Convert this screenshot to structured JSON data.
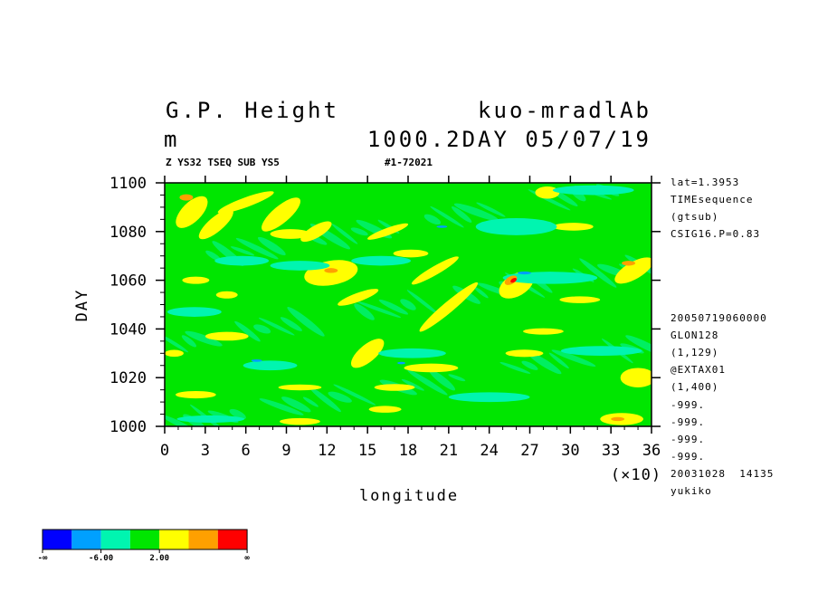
{
  "header": {
    "title_left": "G.P. Height",
    "units": "m",
    "title_right": "kuo-mradlAb",
    "level_date": "1000.2DAY 05/07/19",
    "subtitle_left": "Z YS32 TSEQ SUB YS5",
    "subtitle_right": "#1-72021"
  },
  "info_upper": [
    "lat=1.3953",
    "TIMEsequence",
    "(gtsub)",
    "CSIG16.P=0.83"
  ],
  "info_lower": [
    "20050719060000",
    "GLON128",
    "(1,129)",
    "@EXTAX01",
    "(1,400)",
    "-999.",
    "-999.",
    "-999.",
    "-999.",
    "20031028  14135",
    "yukiko"
  ],
  "chart_data": {
    "type": "heatmap",
    "xlabel": "longitude",
    "xlabel_multiplier": "(×10)",
    "ylabel": "DAY",
    "xlim": [
      0,
      36
    ],
    "ylim": [
      1000,
      1100
    ],
    "xticks": [
      "0",
      "3",
      "6",
      "9",
      "12",
      "15",
      "18",
      "21",
      "24",
      "27",
      "30",
      "33",
      "36"
    ],
    "yticks": [
      "1000",
      "1020",
      "1040",
      "1060",
      "1080",
      "1100"
    ],
    "background_level_color": "#00e600",
    "color_levels": [
      {
        "color": "#0000ff"
      },
      {
        "color": "#00a0ff"
      },
      {
        "color": "#00f5b0"
      },
      {
        "color": "#00e600"
      },
      {
        "color": "#ffff00"
      },
      {
        "color": "#ffa000"
      },
      {
        "color": "#ff0000"
      }
    ],
    "legend_labels": [
      "-∞",
      "-6.00",
      "2.00",
      "∞"
    ],
    "features": [
      {
        "level": 4,
        "x": 2.0,
        "y": 1088,
        "rx": 1.5,
        "ry": 4,
        "angle": -45
      },
      {
        "level": 5,
        "x": 1.6,
        "y": 1094,
        "rx": 0.5,
        "ry": 1.3,
        "angle": 0
      },
      {
        "level": 4,
        "x": 3.8,
        "y": 1083,
        "rx": 1.6,
        "ry": 3,
        "angle": -40
      },
      {
        "level": 4,
        "x": 6.0,
        "y": 1092,
        "rx": 2.2,
        "ry": 2,
        "angle": -20
      },
      {
        "level": 4,
        "x": 8.6,
        "y": 1087,
        "rx": 1.8,
        "ry": 3.5,
        "angle": -40
      },
      {
        "level": 4,
        "x": 11.2,
        "y": 1080,
        "rx": 1.3,
        "ry": 2.5,
        "angle": -30
      },
      {
        "level": 4,
        "x": 12.3,
        "y": 1063,
        "rx": 2.0,
        "ry": 5,
        "angle": -10
      },
      {
        "level": 5,
        "x": 12.3,
        "y": 1064,
        "rx": 0.5,
        "ry": 1.0,
        "angle": 0
      },
      {
        "level": 4,
        "x": 9.3,
        "y": 1079,
        "rx": 1.5,
        "ry": 2,
        "angle": 0
      },
      {
        "level": 4,
        "x": 2.3,
        "y": 1060,
        "rx": 1.0,
        "ry": 1.5,
        "angle": 0
      },
      {
        "level": 4,
        "x": 4.6,
        "y": 1054,
        "rx": 0.8,
        "ry": 1.5,
        "angle": 0
      },
      {
        "level": 4,
        "x": 16.5,
        "y": 1080,
        "rx": 1.6,
        "ry": 1.5,
        "angle": -20
      },
      {
        "level": 4,
        "x": 18.2,
        "y": 1071,
        "rx": 1.3,
        "ry": 1.6,
        "angle": 0
      },
      {
        "level": 4,
        "x": 20.0,
        "y": 1064,
        "rx": 2.0,
        "ry": 1.8,
        "angle": -30
      },
      {
        "level": 4,
        "x": 21.0,
        "y": 1049,
        "rx": 2.8,
        "ry": 2.2,
        "angle": -40
      },
      {
        "level": 4,
        "x": 14.3,
        "y": 1053,
        "rx": 1.6,
        "ry": 1.8,
        "angle": -20
      },
      {
        "level": 4,
        "x": 15.0,
        "y": 1030,
        "rx": 1.5,
        "ry": 3.5,
        "angle": -40
      },
      {
        "level": 4,
        "x": 19.7,
        "y": 1024,
        "rx": 2.0,
        "ry": 1.8,
        "angle": 0
      },
      {
        "level": 4,
        "x": 17.0,
        "y": 1016,
        "rx": 1.5,
        "ry": 1.4,
        "angle": 0
      },
      {
        "level": 4,
        "x": 10.0,
        "y": 1016,
        "rx": 1.6,
        "ry": 1.2,
        "angle": 0
      },
      {
        "level": 4,
        "x": 2.3,
        "y": 1013,
        "rx": 1.5,
        "ry": 1.5,
        "angle": 0
      },
      {
        "level": 4,
        "x": 4.6,
        "y": 1037,
        "rx": 1.6,
        "ry": 1.8,
        "angle": 0
      },
      {
        "level": 4,
        "x": 0.7,
        "y": 1030,
        "rx": 0.7,
        "ry": 1.4,
        "angle": 0
      },
      {
        "level": 4,
        "x": 16.3,
        "y": 1007,
        "rx": 1.2,
        "ry": 1.4,
        "angle": 0
      },
      {
        "level": 4,
        "x": 10.0,
        "y": 1002,
        "rx": 1.5,
        "ry": 1.4,
        "angle": 0
      },
      {
        "level": 4,
        "x": 26.0,
        "y": 1058,
        "rx": 1.4,
        "ry": 4.5,
        "angle": -30
      },
      {
        "level": 5,
        "x": 25.6,
        "y": 1060,
        "rx": 0.5,
        "ry": 1.6,
        "angle": -30
      },
      {
        "level": 6,
        "x": 25.8,
        "y": 1060,
        "rx": 0.25,
        "ry": 0.8,
        "angle": -30
      },
      {
        "level": 4,
        "x": 28.0,
        "y": 1039,
        "rx": 1.5,
        "ry": 1.3,
        "angle": 0
      },
      {
        "level": 4,
        "x": 26.6,
        "y": 1030,
        "rx": 1.4,
        "ry": 1.5,
        "angle": 0
      },
      {
        "level": 4,
        "x": 28.3,
        "y": 1096,
        "rx": 0.9,
        "ry": 2.5,
        "angle": 0
      },
      {
        "level": 4,
        "x": 30.7,
        "y": 1052,
        "rx": 1.5,
        "ry": 1.4,
        "angle": 0
      },
      {
        "level": 4,
        "x": 34.7,
        "y": 1064,
        "rx": 1.6,
        "ry": 3.5,
        "angle": -30
      },
      {
        "level": 5,
        "x": 34.3,
        "y": 1067,
        "rx": 0.5,
        "ry": 1.0,
        "angle": 0
      },
      {
        "level": 4,
        "x": 35.0,
        "y": 1020,
        "rx": 1.3,
        "ry": 4,
        "angle": 0
      },
      {
        "level": 4,
        "x": 33.8,
        "y": 1003,
        "rx": 1.6,
        "ry": 2.5,
        "angle": 0
      },
      {
        "level": 5,
        "x": 33.5,
        "y": 1003,
        "rx": 0.5,
        "ry": 0.8,
        "angle": 0
      },
      {
        "level": 4,
        "x": 30.2,
        "y": 1082,
        "rx": 1.5,
        "ry": 1.6,
        "angle": 0
      },
      {
        "level": 2,
        "x": 26.0,
        "y": 1082,
        "rx": 3.0,
        "ry": 3.5,
        "angle": 0
      },
      {
        "level": 2,
        "x": 28.5,
        "y": 1061,
        "rx": 3.5,
        "ry": 2.5,
        "angle": 0
      },
      {
        "level": 2,
        "x": 10.0,
        "y": 1066,
        "rx": 2.2,
        "ry": 2,
        "angle": 0
      },
      {
        "level": 2,
        "x": 5.7,
        "y": 1068,
        "rx": 2.0,
        "ry": 2.0,
        "angle": 0
      },
      {
        "level": 2,
        "x": 16.0,
        "y": 1068,
        "rx": 2.2,
        "ry": 2.0,
        "angle": 0
      },
      {
        "level": 2,
        "x": 2.2,
        "y": 1047,
        "rx": 2.0,
        "ry": 2.0,
        "angle": 0
      },
      {
        "level": 2,
        "x": 18.3,
        "y": 1030,
        "rx": 2.5,
        "ry": 2.0,
        "angle": 0
      },
      {
        "level": 2,
        "x": 7.8,
        "y": 1025,
        "rx": 2.0,
        "ry": 2.0,
        "angle": 0
      },
      {
        "level": 2,
        "x": 24.0,
        "y": 1012,
        "rx": 3.0,
        "ry": 2.0,
        "angle": 0
      },
      {
        "level": 2,
        "x": 32.3,
        "y": 1031,
        "rx": 3.0,
        "ry": 2.0,
        "angle": 0
      },
      {
        "level": 2,
        "x": 31.7,
        "y": 1097,
        "rx": 3.0,
        "ry": 2.0,
        "angle": 0
      },
      {
        "level": 2,
        "x": 3.4,
        "y": 1003,
        "rx": 2.5,
        "ry": 1.5,
        "angle": 0
      },
      {
        "level": 1,
        "x": 6.8,
        "y": 1027,
        "rx": 0.4,
        "ry": 0.5,
        "angle": 0
      },
      {
        "level": 1,
        "x": 20.5,
        "y": 1082,
        "rx": 0.4,
        "ry": 0.5,
        "angle": 0
      },
      {
        "level": 1,
        "x": 26.6,
        "y": 1063,
        "rx": 0.5,
        "ry": 0.6,
        "angle": 0
      },
      {
        "level": 1,
        "x": 17.5,
        "y": 1026,
        "rx": 0.3,
        "ry": 0.5,
        "angle": 0
      }
    ]
  }
}
